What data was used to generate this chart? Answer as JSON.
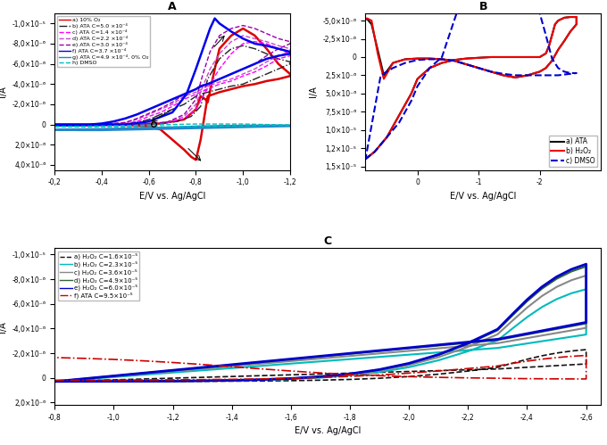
{
  "fig_width": 6.8,
  "fig_height": 4.99,
  "dpi": 100,
  "background_color": "#ffffff",
  "panel_A": {
    "title": "A",
    "xlabel": "E/V vs. Ag/AgCl",
    "ylabel": "I/A",
    "xlim": [
      -0.2,
      -1.2
    ],
    "ylim": [
      4.5e-06,
      -1.1e-05
    ],
    "legend_labels": [
      "a) 10% O₂",
      "b) ATA C=5.0 ×10⁻⁴",
      "c) ATA C=1.4 ×10⁻⁴",
      "d) ATA C=2.2 ×10⁻⁴",
      "e) ATA C=3.0 ×10⁻⁴",
      "f) ATA C=3.7 ×10⁻⁴",
      "g) ATA C=4.9 ×10⁻⁴, 0% O₂",
      "h) DMSO"
    ]
  },
  "panel_B": {
    "title": "B",
    "xlabel": "E/V vs. Ag/AgCl",
    "ylabel": "I/A",
    "xlim": [
      0.85,
      -3.0
    ],
    "ylim": [
      1.55e-05,
      -6e-06
    ],
    "legend_labels": [
      "a) ATA",
      "b) H₂O₂",
      "c) DMSO"
    ]
  },
  "panel_C": {
    "title": "C",
    "xlabel": "E/V vs. Ag/AgCl",
    "ylabel": "I/A",
    "xlim": [
      -0.8,
      -2.65
    ],
    "ylim": [
      2.2e-06,
      -1.05e-05
    ],
    "legend_labels": [
      "a) H₂O₂ C=1.6×10⁻⁵",
      "b) H₂O₂ C=2.3×10⁻⁵",
      "c) H₂O₂ C=3.6×10⁻⁵",
      "d) H₂O₂ C=4.9×10⁻⁵",
      "e) H₂O₂ C=6.0×10⁻⁵",
      "f) ATA C=9.5×10⁻⁵"
    ]
  }
}
